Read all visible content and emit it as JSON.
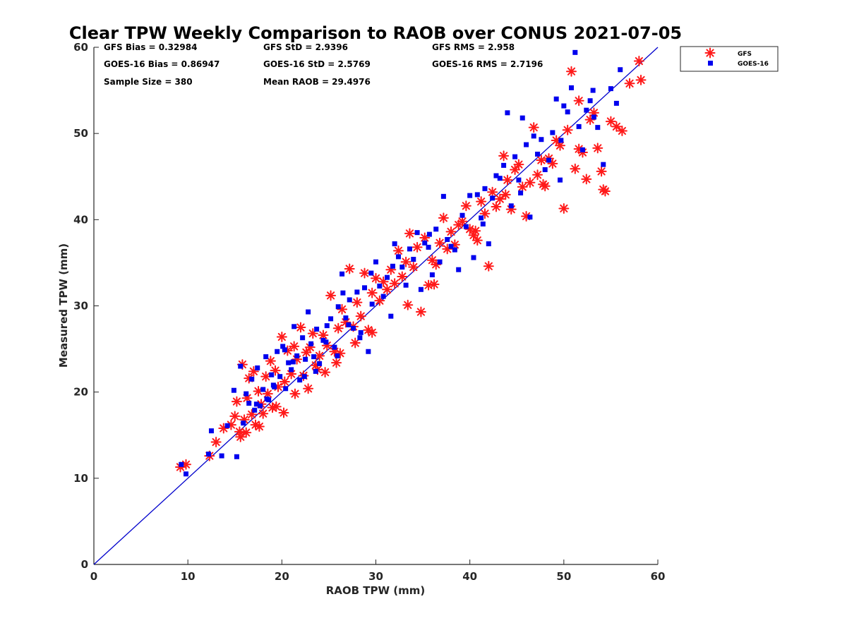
{
  "chart_data": {
    "type": "scatter",
    "title": "Clear TPW Weekly Comparison to RAOB over CONUS 2021-07-05",
    "xlabel": "RAOB TPW (mm)",
    "ylabel": "Measured TPW (mm)",
    "xlim": [
      0,
      60
    ],
    "ylim": [
      0,
      60
    ],
    "xticks": [
      "0",
      "10",
      "20",
      "30",
      "40",
      "50",
      "60"
    ],
    "yticks": [
      "0",
      "10",
      "20",
      "30",
      "40",
      "50",
      "60"
    ],
    "grid": false,
    "legend_position": "top-right outside",
    "stats": {
      "gfs_bias": "GFS Bias = 0.32984",
      "goes_bias": "GOES-16 Bias = 0.86947",
      "sample_size": "Sample Size = 380",
      "gfs_std": "GFS StD = 2.9396",
      "goes_std": "GOES-16 StD = 2.5769",
      "mean_raob": "Mean RAOB = 29.4976",
      "gfs_rms": "GFS RMS = 2.958",
      "goes_rms": "GOES-16 RMS = 2.7196"
    },
    "reference_line": {
      "x": [
        0,
        60
      ],
      "y": [
        0,
        60
      ],
      "color": "#0000cc"
    },
    "series": [
      {
        "name": "GFS",
        "marker": "asterisk",
        "color": "#ff1a1a",
        "x": [
          9.2,
          9.8,
          12.3,
          13.0,
          13.8,
          14.6,
          15.0,
          15.2,
          15.5,
          15.8,
          16.0,
          16.3,
          16.5,
          16.8,
          17.0,
          17.2,
          17.5,
          17.8,
          18.0,
          18.3,
          18.5,
          18.8,
          19.0,
          19.3,
          19.6,
          20.0,
          20.3,
          20.6,
          21.0,
          21.3,
          21.6,
          22.0,
          22.3,
          22.6,
          23.0,
          23.3,
          23.6,
          24.0,
          24.4,
          24.8,
          25.2,
          25.6,
          26.0,
          26.4,
          26.8,
          27.2,
          27.6,
          28.0,
          28.4,
          28.8,
          29.2,
          29.6,
          30.0,
          30.4,
          30.8,
          31.2,
          31.6,
          32.0,
          32.4,
          32.8,
          33.2,
          33.6,
          34.0,
          34.4,
          34.8,
          35.2,
          35.6,
          36.0,
          36.4,
          36.8,
          37.2,
          37.6,
          38.0,
          38.4,
          38.8,
          39.2,
          39.6,
          40.0,
          40.4,
          40.8,
          41.2,
          41.6,
          42.0,
          42.4,
          42.8,
          43.2,
          43.6,
          44.0,
          44.4,
          44.8,
          45.2,
          45.6,
          46.0,
          46.4,
          46.8,
          47.2,
          47.6,
          48.0,
          48.4,
          48.8,
          49.2,
          49.6,
          50.0,
          50.4,
          50.8,
          51.2,
          51.6,
          52.0,
          52.4,
          52.8,
          53.2,
          53.6,
          54.0,
          54.4,
          55.0,
          55.6,
          56.2,
          57.0,
          58.0,
          58.2,
          20.2,
          21.4,
          22.8,
          24.6,
          26.2,
          27.8,
          19.4,
          17.6,
          16.2,
          15.6,
          23.8,
          25.8,
          29.6,
          33.4,
          36.2,
          40.6,
          43.8,
          47.8,
          51.6,
          54.2
        ],
        "y": [
          11.3,
          11.6,
          12.6,
          14.2,
          15.8,
          16.2,
          17.2,
          18.9,
          15.4,
          23.2,
          16.8,
          19.3,
          21.6,
          17.4,
          22.4,
          16.2,
          20.1,
          18.6,
          17.5,
          21.8,
          19.8,
          23.6,
          18.2,
          22.5,
          20.6,
          26.4,
          21.2,
          24.8,
          22.1,
          25.3,
          23.8,
          27.5,
          21.9,
          24.6,
          25.2,
          26.8,
          23.1,
          24.2,
          26.6,
          25.4,
          31.2,
          24.7,
          27.4,
          29.6,
          28.1,
          34.3,
          27.6,
          30.4,
          28.8,
          33.8,
          27.2,
          31.5,
          33.2,
          30.6,
          32.8,
          31.9,
          34.2,
          32.6,
          36.4,
          33.4,
          35.1,
          38.4,
          34.5,
          36.8,
          29.3,
          37.9,
          32.4,
          35.3,
          34.8,
          37.3,
          40.2,
          36.6,
          38.6,
          37.1,
          39.4,
          39.8,
          41.6,
          38.9,
          38.2,
          37.6,
          42.1,
          40.7,
          34.6,
          43.2,
          41.5,
          42.4,
          47.4,
          44.6,
          41.2,
          45.8,
          46.4,
          43.8,
          40.4,
          44.3,
          50.7,
          45.2,
          46.9,
          43.9,
          47.1,
          46.5,
          49.2,
          48.6,
          41.3,
          50.4,
          57.2,
          45.9,
          48.2,
          47.8,
          44.7,
          51.6,
          52.4,
          48.3,
          45.6,
          43.3,
          51.4,
          50.8,
          50.3,
          55.8,
          58.4,
          56.2,
          17.6,
          19.8,
          20.4,
          22.3,
          24.5,
          25.7,
          18.3,
          16.0,
          15.3,
          14.8,
          22.6,
          23.4,
          26.9,
          30.1,
          32.5,
          38.7,
          42.9,
          44.1,
          53.8,
          43.5
        ]
      },
      {
        "name": "GOES-16",
        "marker": "square",
        "color": "#0000ee",
        "x": [
          9.3,
          9.8,
          12.2,
          12.5,
          13.6,
          14.2,
          14.9,
          15.2,
          15.6,
          15.9,
          16.2,
          16.5,
          16.8,
          17.1,
          17.4,
          17.7,
          18.0,
          18.3,
          18.6,
          18.9,
          19.2,
          19.5,
          19.8,
          20.1,
          20.4,
          20.7,
          21.0,
          21.3,
          21.6,
          21.9,
          22.2,
          22.5,
          22.8,
          23.1,
          23.4,
          23.7,
          24.0,
          24.4,
          24.8,
          25.2,
          25.6,
          26.0,
          26.4,
          26.8,
          27.2,
          27.6,
          28.0,
          28.4,
          28.8,
          29.2,
          29.6,
          30.0,
          30.4,
          30.8,
          31.2,
          31.6,
          32.0,
          32.4,
          32.8,
          33.2,
          33.6,
          34.0,
          34.4,
          34.8,
          35.2,
          35.6,
          36.0,
          36.4,
          36.8,
          37.2,
          37.6,
          38.0,
          38.4,
          38.8,
          39.2,
          39.6,
          40.0,
          40.4,
          40.8,
          41.2,
          41.6,
          42.0,
          42.4,
          42.8,
          43.2,
          43.6,
          44.0,
          44.4,
          44.8,
          45.2,
          45.6,
          46.0,
          46.4,
          46.8,
          47.2,
          47.6,
          48.0,
          48.4,
          48.8,
          49.2,
          49.6,
          50.0,
          50.4,
          50.8,
          51.2,
          51.6,
          52.0,
          52.4,
          52.8,
          53.2,
          53.6,
          54.2,
          55.0,
          55.6,
          56.0,
          20.3,
          21.2,
          22.4,
          23.6,
          24.7,
          25.9,
          27.1,
          28.3,
          19.1,
          18.4,
          17.3,
          26.5,
          29.5,
          31.8,
          35.7,
          41.4,
          45.4,
          49.7,
          53.1
        ],
        "y": [
          11.6,
          10.5,
          12.8,
          15.5,
          12.6,
          16.1,
          20.2,
          12.5,
          23.0,
          16.4,
          19.8,
          18.7,
          21.5,
          17.9,
          22.8,
          18.4,
          20.3,
          24.1,
          19.1,
          22.0,
          20.6,
          24.7,
          21.8,
          25.3,
          20.4,
          23.4,
          22.6,
          27.6,
          24.2,
          21.4,
          26.3,
          23.8,
          29.3,
          25.6,
          24.1,
          27.3,
          23.3,
          26.0,
          27.7,
          28.5,
          25.2,
          29.9,
          33.7,
          28.6,
          30.7,
          27.4,
          31.6,
          26.9,
          32.1,
          24.7,
          30.2,
          35.1,
          32.3,
          31.1,
          33.3,
          28.8,
          37.2,
          35.7,
          34.5,
          32.4,
          36.6,
          35.4,
          38.5,
          31.9,
          37.3,
          36.8,
          33.6,
          38.9,
          35.1,
          42.7,
          37.7,
          36.9,
          36.5,
          34.2,
          40.5,
          39.2,
          42.8,
          35.6,
          42.9,
          40.2,
          43.6,
          37.2,
          42.5,
          45.1,
          44.8,
          46.3,
          52.4,
          41.6,
          47.3,
          44.6,
          51.8,
          48.7,
          40.3,
          49.7,
          47.6,
          49.3,
          45.8,
          46.9,
          50.1,
          54.0,
          44.6,
          53.2,
          52.5,
          55.3,
          59.4,
          50.8,
          48.1,
          52.7,
          53.8,
          51.9,
          50.7,
          46.4,
          55.2,
          53.5,
          57.4,
          24.9,
          23.5,
          21.8,
          22.4,
          25.8,
          24.2,
          27.8,
          26.3,
          20.8,
          19.2,
          18.6,
          31.5,
          33.8,
          34.6,
          38.3,
          39.5,
          43.1,
          49.2,
          55.0
        ]
      }
    ]
  }
}
